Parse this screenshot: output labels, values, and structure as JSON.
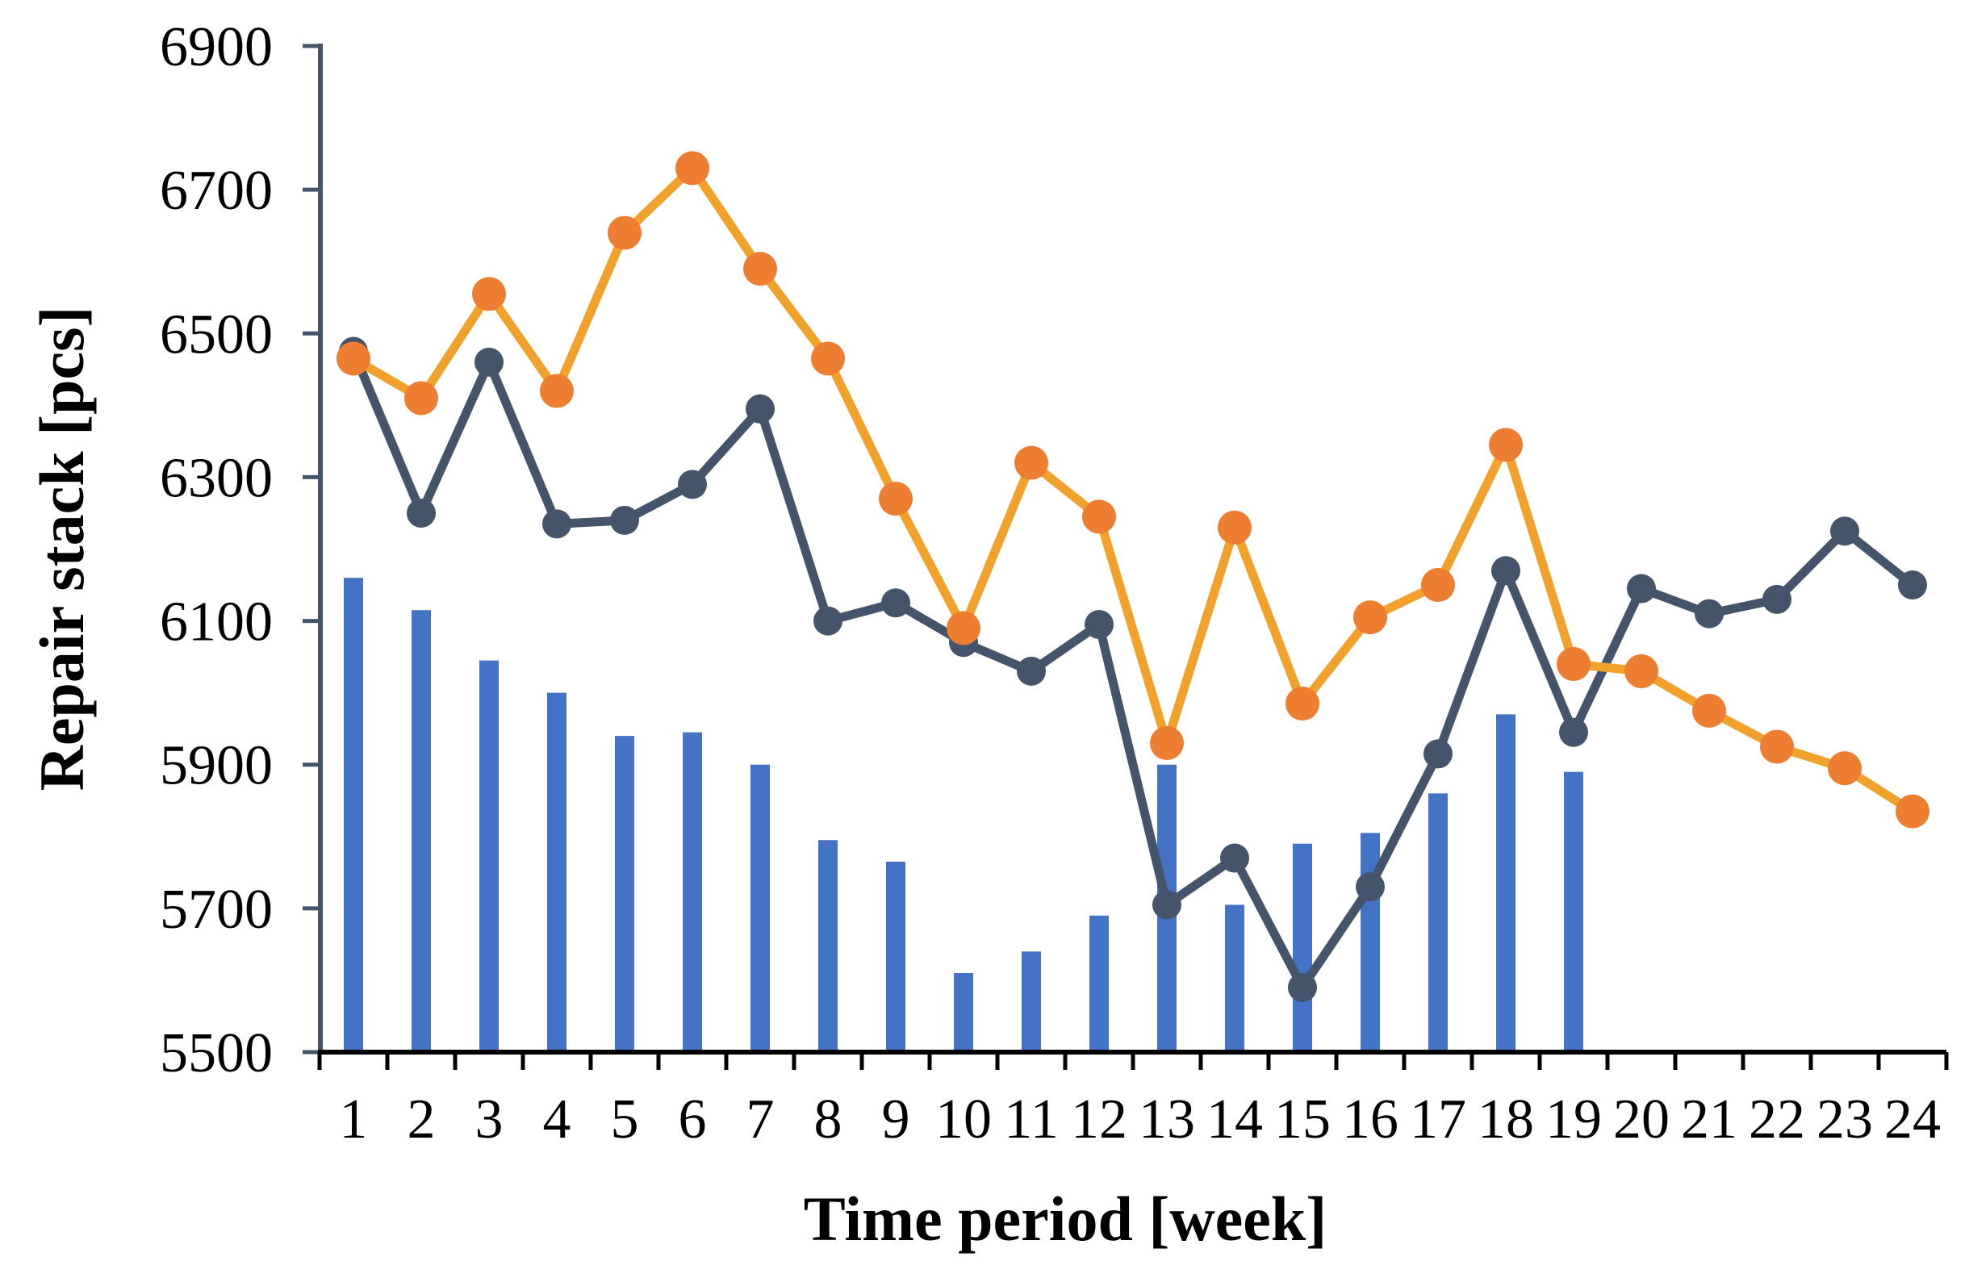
{
  "chart_data": {
    "type": "bar",
    "subtype": "combo-bar-and-two-lines",
    "title": "",
    "xlabel": "Time period [week]",
    "ylabel": "Repair stack [pcs]",
    "categories": [
      1,
      2,
      3,
      4,
      5,
      6,
      7,
      8,
      9,
      10,
      11,
      12,
      13,
      14,
      15,
      16,
      17,
      18,
      19,
      20,
      21,
      22,
      23,
      24
    ],
    "ylim": [
      5500,
      6900
    ],
    "ytick_step": 200,
    "ytick_labels": [
      "5500",
      "5700",
      "5900",
      "6100",
      "6300",
      "6500",
      "6700",
      "6900"
    ],
    "grid": false,
    "legend_position": "none",
    "series": [
      {
        "name": "repair-stack-bars",
        "type": "bar",
        "color": "#4472C4",
        "values": [
          6160,
          6115,
          6045,
          6000,
          5940,
          5945,
          5900,
          5795,
          5765,
          5610,
          5640,
          5690,
          5900,
          5705,
          5790,
          5805,
          5860,
          5970,
          5890,
          null,
          null,
          null,
          null,
          null
        ]
      },
      {
        "name": "orange-line",
        "type": "line",
        "color": "#F0A22C",
        "marker_color": "#ED7D31",
        "values": [
          6465,
          6410,
          6555,
          6420,
          6640,
          6730,
          6590,
          6465,
          6270,
          6090,
          6320,
          6245,
          5930,
          6230,
          5985,
          6105,
          6150,
          6345,
          6040,
          6030,
          5975,
          5925,
          5895,
          5835
        ]
      },
      {
        "name": "slate-line",
        "type": "line",
        "color": "#44546A",
        "marker_color": "#44546A",
        "values": [
          6475,
          6250,
          6460,
          6235,
          6240,
          6290,
          6395,
          6100,
          6125,
          6070,
          6030,
          6095,
          5705,
          5770,
          5590,
          5730,
          5915,
          6170,
          5945,
          6145,
          6110,
          6130,
          6225,
          6150
        ]
      }
    ],
    "axis_colors": {
      "y_axis": "#44546A",
      "x_axis": "#000000"
    }
  }
}
